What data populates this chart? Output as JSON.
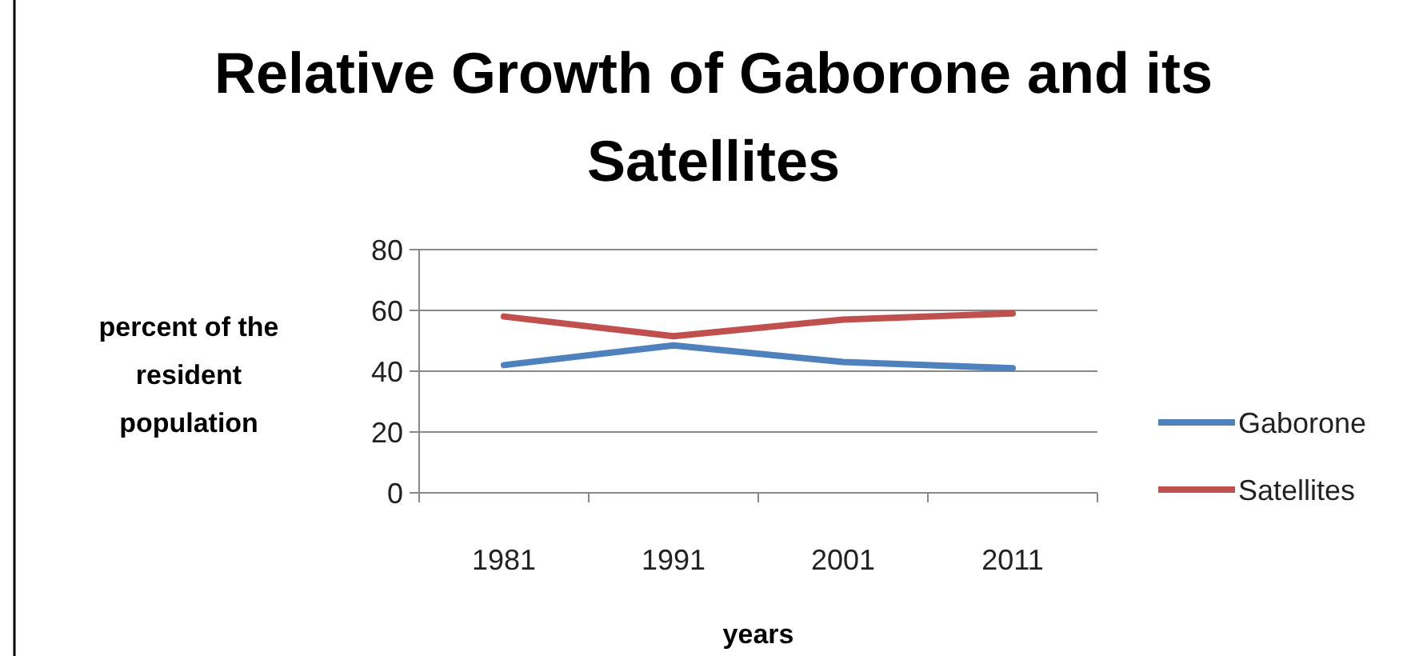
{
  "chart_data": {
    "type": "line",
    "title": "Relative Growth of Gaborone and its Satellites",
    "xlabel": "years",
    "ylabel": "percent of the resident population",
    "categories": [
      "1981",
      "1991",
      "2001",
      "2011"
    ],
    "series": [
      {
        "name": "Gaborone",
        "color": "#4f81bd",
        "values": [
          42,
          48.5,
          43,
          41
        ]
      },
      {
        "name": "Satellites",
        "color": "#c0504d",
        "values": [
          58,
          51.5,
          57,
          59
        ]
      }
    ],
    "ylim": [
      0,
      80
    ],
    "yticks": [
      0,
      20,
      40,
      60,
      80
    ],
    "grid": "y",
    "legend": "right",
    "marker": "none",
    "line_style": "solid"
  }
}
